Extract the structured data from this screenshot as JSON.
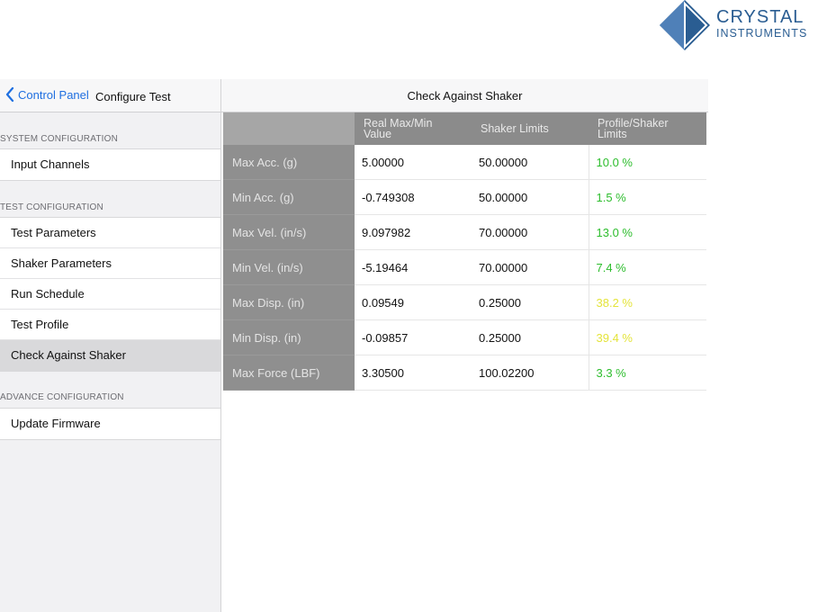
{
  "logo": {
    "line1": "CRYSTAL",
    "line2": "INSTRUMENTS",
    "color": "#2a5d92"
  },
  "sidebar": {
    "back_label": "Control Panel",
    "title": "Configure Test",
    "sections": [
      {
        "label": "SYSTEM CONFIGURATION",
        "items": [
          "Input Channels"
        ]
      },
      {
        "label": "TEST CONFIGURATION",
        "items": [
          "Test Parameters",
          "Shaker Parameters",
          "Run Schedule",
          "Test Profile",
          "Check Against Shaker"
        ]
      },
      {
        "label": "ADVANCE CONFIGURATION",
        "items": [
          "Update Firmware"
        ]
      }
    ],
    "selected_item": "Check Against Shaker"
  },
  "main": {
    "title": "Check Against Shaker",
    "table": {
      "headers": [
        "",
        "Real Max/Min Value",
        "Shaker Limits",
        "Profile/Shaker Limits"
      ],
      "rows": [
        {
          "label": "Max Acc. (g)",
          "value": "5.00000",
          "limit": "50.00000",
          "ratio": "10.0 %",
          "status": "green"
        },
        {
          "label": "Min Acc. (g)",
          "value": "-0.749308",
          "limit": "50.00000",
          "ratio": "1.5 %",
          "status": "green"
        },
        {
          "label": "Max Vel. (in/s)",
          "value": "9.097982",
          "limit": "70.00000",
          "ratio": "13.0 %",
          "status": "green"
        },
        {
          "label": "Min Vel. (in/s)",
          "value": "-5.19464",
          "limit": "70.00000",
          "ratio": "7.4 %",
          "status": "green"
        },
        {
          "label": "Max Disp. (in)",
          "value": "0.09549",
          "limit": "0.25000",
          "ratio": "38.2 %",
          "status": "yellow"
        },
        {
          "label": "Min Disp. (in)",
          "value": "-0.09857",
          "limit": "0.25000",
          "ratio": "39.4 %",
          "status": "yellow"
        },
        {
          "label": "Max Force (LBF)",
          "value": "3.30500",
          "limit": "100.02200",
          "ratio": "3.3 %",
          "status": "green"
        }
      ]
    }
  },
  "colors": {
    "accent": "#1f6fe0",
    "ok": "#2dbd2d",
    "warn": "#e4e43a"
  }
}
